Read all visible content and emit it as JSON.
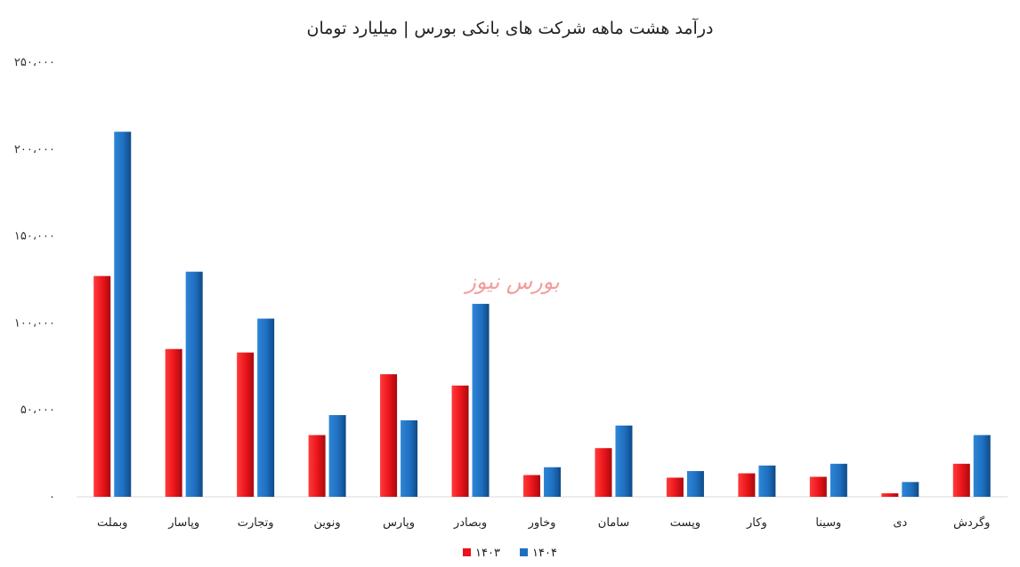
{
  "chart_data": {
    "type": "bar",
    "title": "درآمد هشت ماهه شرکت های بانکی بورس | میلیارد تومان",
    "categories": [
      "وبملت",
      "وپاسار",
      "وتجارت",
      "ونوین",
      "وپارس",
      "وبصادر",
      "وخاور",
      "سامان",
      "وپست",
      "وکار",
      "وسینا",
      "دی",
      "وگردش"
    ],
    "series": [
      {
        "name": "۱۴۰۳",
        "color": "#e8141a",
        "values": [
          127000,
          85000,
          83000,
          35500,
          70500,
          64000,
          12500,
          28000,
          11000,
          13500,
          11500,
          2000,
          19000
        ]
      },
      {
        "name": "۱۴۰۴",
        "color": "#1f6fc0",
        "values": [
          210000,
          129500,
          102500,
          47000,
          44000,
          111000,
          17000,
          41000,
          14800,
          18000,
          19000,
          8500,
          35500
        ]
      }
    ],
    "ylim": [
      0,
      250000
    ],
    "yticks": [
      0,
      50000,
      100000,
      150000,
      200000,
      250000
    ],
    "ytick_labels": [
      "۰",
      "۵۰،۰۰۰",
      "۱۰۰،۰۰۰",
      "۱۵۰،۰۰۰",
      "۲۰۰،۰۰۰",
      "۲۵۰،۰۰۰"
    ],
    "grid": false,
    "legend_position": "bottom",
    "watermark": "بورس نیوز"
  }
}
